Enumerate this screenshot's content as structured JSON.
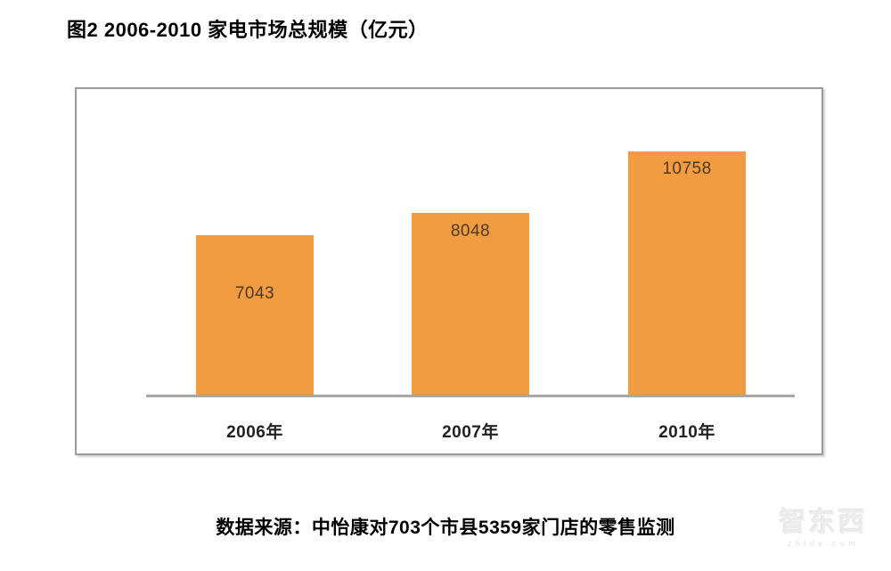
{
  "page": {
    "title": "图2 2006-2010 家电市场总规模（亿元）",
    "source_note": "数据来源：中怡康对703个市县5359家门店的零售监测",
    "watermark": {
      "logo_text": "智东西",
      "site_text": "zhidx.com"
    }
  },
  "chart_data": {
    "type": "bar",
    "title": "图2 2006-2010 家电市场总规模（亿元）",
    "categories": [
      "2006年",
      "2007年",
      "2010年"
    ],
    "values": [
      7043,
      8048,
      10758
    ],
    "unit": "亿元",
    "xlabel": "",
    "ylabel": "",
    "ylim": [
      0,
      13500
    ],
    "grid": false,
    "legend": "none",
    "bar_labels_visible": true,
    "source": "数据来源：中怡康对703个市县5359家门店的零售监测",
    "colors": {
      "bar": "#F29C42",
      "bar_label": "#4d3a22",
      "axis_line": "#a8a8a8",
      "frame_border": "#9b9b9b",
      "title_text": "#000000",
      "category_label": "#222222"
    }
  }
}
